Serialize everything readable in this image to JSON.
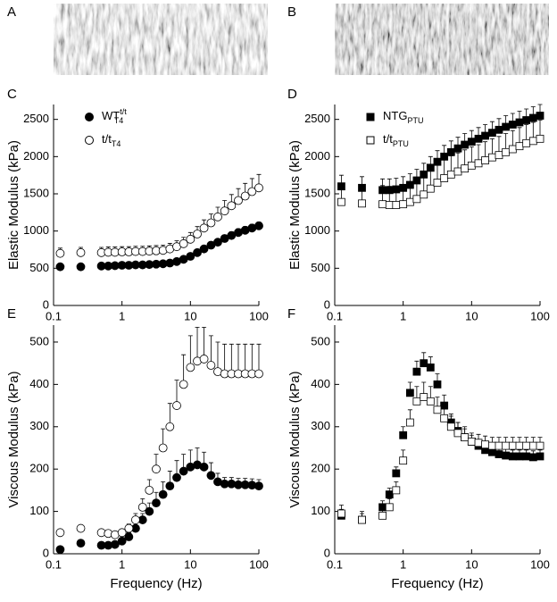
{
  "panels": [
    "A",
    "B"
  ],
  "chart_data": [
    {
      "panel": "C",
      "type": "scatter",
      "ylabel": "Elastic Modulus (kPa)",
      "xscale": "log",
      "legend": "upper left",
      "xlim": [
        0.1,
        100
      ],
      "xticks": [
        0.1,
        1,
        10,
        100
      ],
      "ylim": [
        0,
        2700
      ],
      "yticks": [
        0,
        500,
        1000,
        1500,
        2000,
        2500
      ],
      "x": [
        0.125,
        0.25,
        0.5,
        0.63,
        0.79,
        1,
        1.26,
        1.58,
        2,
        2.51,
        3.16,
        3.98,
        5.01,
        6.31,
        7.94,
        10,
        12.6,
        15.8,
        20,
        25.1,
        31.6,
        39.8,
        50.1,
        63.1,
        79.4,
        100
      ],
      "series": [
        {
          "name": "WT",
          "sup": "t/t",
          "sub": "T4",
          "marker": "circle",
          "color": "#000000",
          "fill": "#000000",
          "values": [
            520,
            520,
            530,
            530,
            535,
            540,
            540,
            545,
            545,
            550,
            555,
            560,
            570,
            590,
            620,
            660,
            710,
            760,
            810,
            850,
            900,
            940,
            980,
            1010,
            1040,
            1070
          ],
          "errors": [
            40,
            40,
            40,
            40,
            40,
            40,
            40,
            40,
            40,
            40,
            40,
            40,
            40,
            40,
            40,
            40,
            40,
            45,
            45,
            45,
            45,
            50,
            50,
            50,
            50,
            50
          ]
        },
        {
          "name": "t/t",
          "sub": "T4",
          "marker": "circle",
          "color": "#000000",
          "fill": "#ffffff",
          "values": [
            700,
            710,
            710,
            715,
            715,
            720,
            720,
            725,
            725,
            730,
            735,
            740,
            760,
            790,
            830,
            890,
            960,
            1040,
            1110,
            1190,
            1270,
            1340,
            1410,
            1470,
            1530,
            1580
          ],
          "errors": [
            70,
            70,
            70,
            70,
            70,
            70,
            70,
            70,
            70,
            70,
            70,
            70,
            75,
            80,
            85,
            90,
            100,
            110,
            120,
            130,
            140,
            150,
            160,
            170,
            175,
            180
          ]
        }
      ]
    },
    {
      "panel": "D",
      "type": "scatter",
      "ylabel": "Elastic Modulus (kPa)",
      "xscale": "log",
      "legend": "upper left",
      "xlim": [
        0.1,
        100
      ],
      "xticks": [
        0.1,
        1,
        10,
        100
      ],
      "ylim": [
        0,
        2700
      ],
      "yticks": [
        0,
        500,
        1000,
        1500,
        2000,
        2500
      ],
      "x": [
        0.125,
        0.25,
        0.5,
        0.63,
        0.79,
        1,
        1.26,
        1.58,
        2,
        2.51,
        3.16,
        3.98,
        5.01,
        6.31,
        7.94,
        10,
        12.6,
        15.8,
        20,
        25.1,
        31.6,
        39.8,
        50.1,
        63.1,
        79.4,
        100
      ],
      "series": [
        {
          "name": "NTG",
          "sub": "PTU",
          "marker": "square",
          "color": "#000000",
          "fill": "#000000",
          "values": [
            1600,
            1580,
            1550,
            1550,
            1560,
            1580,
            1620,
            1680,
            1760,
            1850,
            1930,
            2000,
            2060,
            2110,
            2160,
            2200,
            2240,
            2280,
            2320,
            2360,
            2400,
            2430,
            2460,
            2490,
            2520,
            2550
          ],
          "errors": [
            150,
            150,
            150,
            150,
            150,
            150,
            150,
            150,
            150,
            150,
            150,
            150,
            150,
            150,
            150,
            150,
            150,
            150,
            150,
            150,
            150,
            150,
            150,
            150,
            150,
            150
          ]
        },
        {
          "name": "t/t",
          "sub": "PTU",
          "marker": "square",
          "color": "#000000",
          "fill": "#ffffff",
          "values": [
            1390,
            1370,
            1360,
            1350,
            1350,
            1360,
            1390,
            1430,
            1490,
            1570,
            1650,
            1710,
            1760,
            1800,
            1840,
            1880,
            1910,
            1950,
            1990,
            2020,
            2060,
            2100,
            2140,
            2180,
            2210,
            2240
          ],
          "errors": [
            250,
            250,
            250,
            250,
            250,
            250,
            250,
            250,
            250,
            250,
            250,
            250,
            250,
            250,
            250,
            250,
            250,
            250,
            250,
            250,
            250,
            250,
            250,
            250,
            250,
            250
          ]
        }
      ]
    },
    {
      "panel": "E",
      "type": "scatter",
      "xlabel": "Frequency (Hz)",
      "ylabel": "Viscous Modulus (kPa)",
      "xscale": "log",
      "xlim": [
        0.1,
        100
      ],
      "xticks": [
        0.1,
        1,
        10,
        100
      ],
      "ylim": [
        0,
        540
      ],
      "yticks": [
        0,
        100,
        200,
        300,
        400,
        500
      ],
      "x": [
        0.125,
        0.25,
        0.5,
        0.63,
        0.79,
        1,
        1.26,
        1.58,
        2,
        2.51,
        3.16,
        3.98,
        5.01,
        6.31,
        7.94,
        10,
        12.6,
        15.8,
        20,
        25.1,
        31.6,
        39.8,
        50.1,
        63.1,
        79.4,
        100
      ],
      "series": [
        {
          "marker": "circle",
          "color": "#000000",
          "fill": "#000000",
          "values": [
            10,
            25,
            20,
            20,
            22,
            30,
            40,
            60,
            80,
            100,
            120,
            140,
            160,
            180,
            195,
            205,
            210,
            205,
            185,
            170,
            165,
            165,
            163,
            163,
            162,
            160
          ],
          "errors": [
            5,
            5,
            5,
            5,
            5,
            8,
            10,
            12,
            15,
            20,
            25,
            30,
            35,
            40,
            40,
            40,
            40,
            35,
            30,
            20,
            15,
            15,
            15,
            15,
            15,
            15
          ]
        },
        {
          "marker": "circle",
          "color": "#000000",
          "fill": "#ffffff",
          "values": [
            50,
            60,
            50,
            48,
            45,
            50,
            60,
            80,
            110,
            150,
            200,
            250,
            300,
            350,
            400,
            440,
            455,
            460,
            445,
            430,
            425,
            425,
            425,
            425,
            425,
            425
          ],
          "errors": [
            5,
            5,
            5,
            5,
            5,
            8,
            10,
            15,
            20,
            25,
            35,
            45,
            55,
            60,
            70,
            75,
            80,
            75,
            70,
            70,
            70,
            70,
            70,
            70,
            70,
            70
          ]
        }
      ]
    },
    {
      "panel": "F",
      "type": "scatter",
      "xlabel": "Frequency (Hz)",
      "ylabel": "Viscous Modulus (kPa)",
      "xscale": "log",
      "xlim": [
        0.1,
        100
      ],
      "xticks": [
        0.1,
        1,
        10,
        100
      ],
      "ylim": [
        0,
        540
      ],
      "yticks": [
        0,
        100,
        200,
        300,
        400,
        500
      ],
      "x": [
        0.125,
        0.25,
        0.5,
        0.63,
        0.79,
        1,
        1.26,
        1.58,
        2,
        2.51,
        3.16,
        3.98,
        5.01,
        6.31,
        7.94,
        10,
        12.6,
        15.8,
        20,
        25.1,
        31.6,
        39.8,
        50.1,
        63.1,
        79.4,
        100
      ],
      "series": [
        {
          "marker": "square",
          "color": "#000000",
          "fill": "#000000",
          "values": [
            90,
            80,
            110,
            140,
            190,
            280,
            380,
            430,
            450,
            440,
            400,
            350,
            310,
            290,
            275,
            265,
            255,
            245,
            240,
            235,
            232,
            230,
            230,
            230,
            228,
            230
          ],
          "errors": [
            15,
            15,
            15,
            15,
            15,
            20,
            25,
            25,
            25,
            25,
            25,
            25,
            20,
            20,
            20,
            15,
            15,
            15,
            15,
            15,
            15,
            15,
            15,
            15,
            15,
            15
          ]
        },
        {
          "marker": "square",
          "color": "#000000",
          "fill": "#ffffff",
          "values": [
            95,
            80,
            90,
            110,
            150,
            220,
            310,
            360,
            370,
            360,
            340,
            320,
            300,
            285,
            275,
            265,
            262,
            258,
            255,
            255,
            255,
            255,
            255,
            255,
            255,
            255
          ],
          "errors": [
            20,
            20,
            20,
            20,
            20,
            25,
            30,
            35,
            35,
            35,
            30,
            30,
            25,
            25,
            25,
            20,
            20,
            20,
            20,
            20,
            20,
            20,
            20,
            20,
            20,
            20
          ]
        }
      ]
    }
  ]
}
